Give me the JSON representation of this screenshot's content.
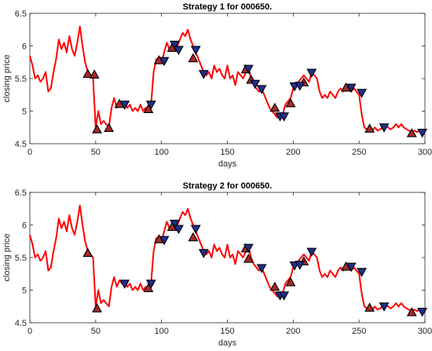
{
  "chart_data": [
    {
      "type": "line",
      "title": "Strategy 1 for 000650.",
      "xlabel": "days",
      "ylabel": "closing price",
      "xlim": [
        0,
        300
      ],
      "ylim": [
        4.5,
        6.5
      ],
      "xticks": [
        0,
        50,
        100,
        150,
        200,
        250,
        300
      ],
      "yticks": [
        4.5,
        5,
        5.5,
        6,
        6.5
      ],
      "xtick_labels": [
        "0",
        "50",
        "100",
        "150",
        "200",
        "250",
        "300"
      ],
      "ytick_labels": [
        "4.5",
        "5",
        "5.5",
        "6",
        "6.5"
      ],
      "grid": false,
      "colors": {
        "line": "#ff0000",
        "buy_marker": "#a52a2a",
        "sell_marker": "#1f2f8f"
      },
      "series": [
        {
          "x": [
            0,
            2,
            4,
            6,
            8,
            10,
            12,
            14,
            16,
            18,
            20,
            22,
            24,
            26,
            28,
            30,
            32,
            34,
            36,
            38,
            40,
            42,
            44,
            46,
            48,
            50,
            52,
            54,
            56,
            58,
            60,
            62,
            64,
            66,
            68,
            70,
            72,
            74,
            76,
            78,
            80,
            82,
            84,
            86,
            88,
            90,
            92,
            94,
            96,
            98,
            100,
            102,
            104,
            106,
            108,
            110,
            112,
            114,
            116,
            118,
            120,
            122,
            124,
            126,
            128,
            130,
            132,
            134,
            136,
            138,
            140,
            142,
            144,
            146,
            148,
            150,
            152,
            154,
            156,
            158,
            160,
            162,
            164,
            166,
            168,
            170,
            172,
            174,
            176,
            178,
            180,
            182,
            184,
            186,
            188,
            190,
            192,
            194,
            196,
            198,
            200,
            202,
            204,
            206,
            208,
            210,
            212,
            214,
            216,
            218,
            220,
            222,
            224,
            226,
            228,
            230,
            232,
            234,
            236,
            238,
            240,
            242,
            244,
            246,
            248,
            250,
            252,
            254,
            256,
            258,
            260,
            262,
            264,
            266,
            268,
            270,
            272,
            274,
            276,
            278,
            280,
            282,
            284,
            286,
            288,
            290,
            292,
            294,
            296,
            298
          ],
          "y": [
            5.85,
            5.7,
            5.5,
            5.55,
            5.45,
            5.5,
            5.6,
            5.3,
            5.35,
            5.6,
            5.8,
            6.1,
            5.95,
            6.05,
            5.9,
            6.15,
            5.95,
            5.85,
            6.05,
            6.3,
            6.0,
            5.75,
            5.6,
            5.55,
            5.5,
            4.75,
            5.0,
            4.8,
            4.85,
            4.8,
            4.75,
            5.05,
            5.2,
            5.05,
            5.15,
            5.1,
            5.15,
            5.05,
            5.1,
            5.0,
            5.05,
            5.0,
            5.1,
            5.0,
            5.05,
            5.05,
            5.1,
            5.6,
            5.8,
            5.75,
            5.75,
            5.9,
            6.05,
            5.95,
            6.0,
            6.05,
            6.0,
            6.1,
            6.2,
            6.15,
            6.25,
            6.1,
            6.0,
            5.9,
            5.8,
            5.7,
            5.6,
            5.55,
            5.6,
            5.5,
            5.7,
            5.6,
            5.65,
            5.55,
            5.5,
            5.7,
            5.5,
            5.55,
            5.4,
            5.6,
            5.55,
            5.5,
            5.6,
            5.65,
            5.5,
            5.4,
            5.35,
            5.3,
            5.35,
            5.25,
            5.15,
            5.05,
            5.0,
            4.95,
            4.9,
            4.9,
            4.95,
            5.1,
            5.15,
            5.2,
            5.35,
            5.4,
            5.45,
            5.5,
            5.55,
            5.5,
            5.45,
            5.6,
            5.55,
            5.5,
            5.3,
            5.2,
            5.25,
            5.2,
            5.3,
            5.25,
            5.2,
            5.3,
            5.35,
            5.3,
            5.4,
            5.35,
            5.3,
            5.35,
            5.3,
            5.25,
            4.95,
            4.75,
            4.72,
            4.75,
            4.7,
            4.75,
            4.7,
            4.72,
            4.75,
            4.78,
            4.75,
            4.72,
            4.75,
            4.8,
            4.75,
            4.8,
            4.75,
            4.72,
            4.7,
            4.68,
            4.7,
            4.68,
            4.7,
            4.68
          ]
        }
      ],
      "buy_signals": [
        {
          "x": 44,
          "y": 5.57
        },
        {
          "x": 49,
          "y": 5.56
        },
        {
          "x": 51,
          "y": 4.72
        },
        {
          "x": 60,
          "y": 4.74
        },
        {
          "x": 68,
          "y": 5.11
        },
        {
          "x": 90,
          "y": 5.03
        },
        {
          "x": 98,
          "y": 5.78
        },
        {
          "x": 108,
          "y": 5.97
        },
        {
          "x": 124,
          "y": 5.81
        },
        {
          "x": 164,
          "y": 5.64
        },
        {
          "x": 168,
          "y": 5.48
        },
        {
          "x": 186,
          "y": 5.05
        },
        {
          "x": 198,
          "y": 5.12
        },
        {
          "x": 208,
          "y": 5.44
        },
        {
          "x": 240,
          "y": 5.36
        },
        {
          "x": 258,
          "y": 4.73
        },
        {
          "x": 290,
          "y": 4.66
        }
      ],
      "sell_signals": [
        {
          "x": 72,
          "y": 5.1
        },
        {
          "x": 92,
          "y": 5.1
        },
        {
          "x": 102,
          "y": 5.77
        },
        {
          "x": 110,
          "y": 6.02
        },
        {
          "x": 113,
          "y": 5.94
        },
        {
          "x": 126,
          "y": 5.94
        },
        {
          "x": 132,
          "y": 5.57
        },
        {
          "x": 166,
          "y": 5.65
        },
        {
          "x": 171,
          "y": 5.42
        },
        {
          "x": 176,
          "y": 5.34
        },
        {
          "x": 190,
          "y": 4.92
        },
        {
          "x": 193,
          "y": 4.92
        },
        {
          "x": 201,
          "y": 5.38
        },
        {
          "x": 205,
          "y": 5.39
        },
        {
          "x": 214,
          "y": 5.59
        },
        {
          "x": 244,
          "y": 5.36
        },
        {
          "x": 252,
          "y": 5.28
        },
        {
          "x": 269,
          "y": 4.75
        },
        {
          "x": 298,
          "y": 4.67
        }
      ]
    },
    {
      "type": "line",
      "title": "Strategy 2 for 000650.",
      "xlabel": "days",
      "ylabel": "closing price",
      "xlim": [
        0,
        300
      ],
      "ylim": [
        4.5,
        6.5
      ],
      "xticks": [
        0,
        50,
        100,
        150,
        200,
        250,
        300
      ],
      "yticks": [
        4.5,
        5,
        5.5,
        6,
        6.5
      ],
      "xtick_labels": [
        "0",
        "50",
        "100",
        "150",
        "200",
        "250",
        "300"
      ],
      "ytick_labels": [
        "4.5",
        "5",
        "5.5",
        "6",
        "6.5"
      ],
      "grid": false,
      "colors": {
        "line": "#ff0000",
        "buy_marker": "#a52a2a",
        "sell_marker": "#1f2f8f"
      },
      "series": [
        {
          "x": [
            0,
            2,
            4,
            6,
            8,
            10,
            12,
            14,
            16,
            18,
            20,
            22,
            24,
            26,
            28,
            30,
            32,
            34,
            36,
            38,
            40,
            42,
            44,
            46,
            48,
            50,
            52,
            54,
            56,
            58,
            60,
            62,
            64,
            66,
            68,
            70,
            72,
            74,
            76,
            78,
            80,
            82,
            84,
            86,
            88,
            90,
            92,
            94,
            96,
            98,
            100,
            102,
            104,
            106,
            108,
            110,
            112,
            114,
            116,
            118,
            120,
            122,
            124,
            126,
            128,
            130,
            132,
            134,
            136,
            138,
            140,
            142,
            144,
            146,
            148,
            150,
            152,
            154,
            156,
            158,
            160,
            162,
            164,
            166,
            168,
            170,
            172,
            174,
            176,
            178,
            180,
            182,
            184,
            186,
            188,
            190,
            192,
            194,
            196,
            198,
            200,
            202,
            204,
            206,
            208,
            210,
            212,
            214,
            216,
            218,
            220,
            222,
            224,
            226,
            228,
            230,
            232,
            234,
            236,
            238,
            240,
            242,
            244,
            246,
            248,
            250,
            252,
            254,
            256,
            258,
            260,
            262,
            264,
            266,
            268,
            270,
            272,
            274,
            276,
            278,
            280,
            282,
            284,
            286,
            288,
            290,
            292,
            294,
            296,
            298
          ],
          "y": [
            5.85,
            5.7,
            5.5,
            5.55,
            5.45,
            5.5,
            5.6,
            5.3,
            5.35,
            5.6,
            5.8,
            6.1,
            5.95,
            6.05,
            5.9,
            6.15,
            5.95,
            5.85,
            6.05,
            6.3,
            6.0,
            5.75,
            5.6,
            5.55,
            5.5,
            4.75,
            5.0,
            4.8,
            4.85,
            4.8,
            4.75,
            5.05,
            5.2,
            5.05,
            5.15,
            5.1,
            5.15,
            5.05,
            5.1,
            5.0,
            5.05,
            5.0,
            5.1,
            5.0,
            5.05,
            5.05,
            5.1,
            5.6,
            5.8,
            5.75,
            5.75,
            5.9,
            6.05,
            5.95,
            6.0,
            6.05,
            6.0,
            6.1,
            6.2,
            6.15,
            6.25,
            6.1,
            6.0,
            5.9,
            5.8,
            5.7,
            5.6,
            5.55,
            5.6,
            5.5,
            5.7,
            5.6,
            5.65,
            5.55,
            5.5,
            5.7,
            5.5,
            5.55,
            5.4,
            5.6,
            5.55,
            5.5,
            5.6,
            5.65,
            5.5,
            5.4,
            5.35,
            5.3,
            5.35,
            5.25,
            5.15,
            5.05,
            5.0,
            4.95,
            4.9,
            4.9,
            4.95,
            5.1,
            5.15,
            5.2,
            5.35,
            5.4,
            5.45,
            5.5,
            5.55,
            5.5,
            5.45,
            5.6,
            5.55,
            5.5,
            5.3,
            5.2,
            5.25,
            5.2,
            5.3,
            5.25,
            5.2,
            5.3,
            5.35,
            5.3,
            5.4,
            5.35,
            5.3,
            5.35,
            5.3,
            5.25,
            4.95,
            4.75,
            4.72,
            4.75,
            4.7,
            4.75,
            4.7,
            4.72,
            4.75,
            4.78,
            4.75,
            4.72,
            4.75,
            4.8,
            4.75,
            4.8,
            4.75,
            4.72,
            4.7,
            4.68,
            4.7,
            4.68,
            4.7,
            4.68
          ]
        }
      ],
      "buy_signals": [
        {
          "x": 44,
          "y": 5.57
        },
        {
          "x": 51,
          "y": 4.72
        },
        {
          "x": 90,
          "y": 5.03
        },
        {
          "x": 98,
          "y": 5.78
        },
        {
          "x": 108,
          "y": 5.97
        },
        {
          "x": 124,
          "y": 5.81
        },
        {
          "x": 164,
          "y": 5.64
        },
        {
          "x": 166,
          "y": 5.48
        },
        {
          "x": 186,
          "y": 5.05
        },
        {
          "x": 198,
          "y": 5.12
        },
        {
          "x": 208,
          "y": 5.44
        },
        {
          "x": 240,
          "y": 5.36
        },
        {
          "x": 258,
          "y": 4.73
        },
        {
          "x": 290,
          "y": 4.66
        }
      ],
      "sell_signals": [
        {
          "x": 72,
          "y": 5.1
        },
        {
          "x": 92,
          "y": 5.1
        },
        {
          "x": 102,
          "y": 5.77
        },
        {
          "x": 110,
          "y": 6.02
        },
        {
          "x": 113,
          "y": 5.94
        },
        {
          "x": 126,
          "y": 5.94
        },
        {
          "x": 132,
          "y": 5.57
        },
        {
          "x": 166,
          "y": 5.65
        },
        {
          "x": 176,
          "y": 5.34
        },
        {
          "x": 190,
          "y": 4.92
        },
        {
          "x": 193,
          "y": 4.92
        },
        {
          "x": 201,
          "y": 5.38
        },
        {
          "x": 205,
          "y": 5.39
        },
        {
          "x": 214,
          "y": 5.59
        },
        {
          "x": 244,
          "y": 5.36
        },
        {
          "x": 252,
          "y": 5.28
        },
        {
          "x": 269,
          "y": 4.75
        },
        {
          "x": 298,
          "y": 4.67
        }
      ]
    }
  ]
}
